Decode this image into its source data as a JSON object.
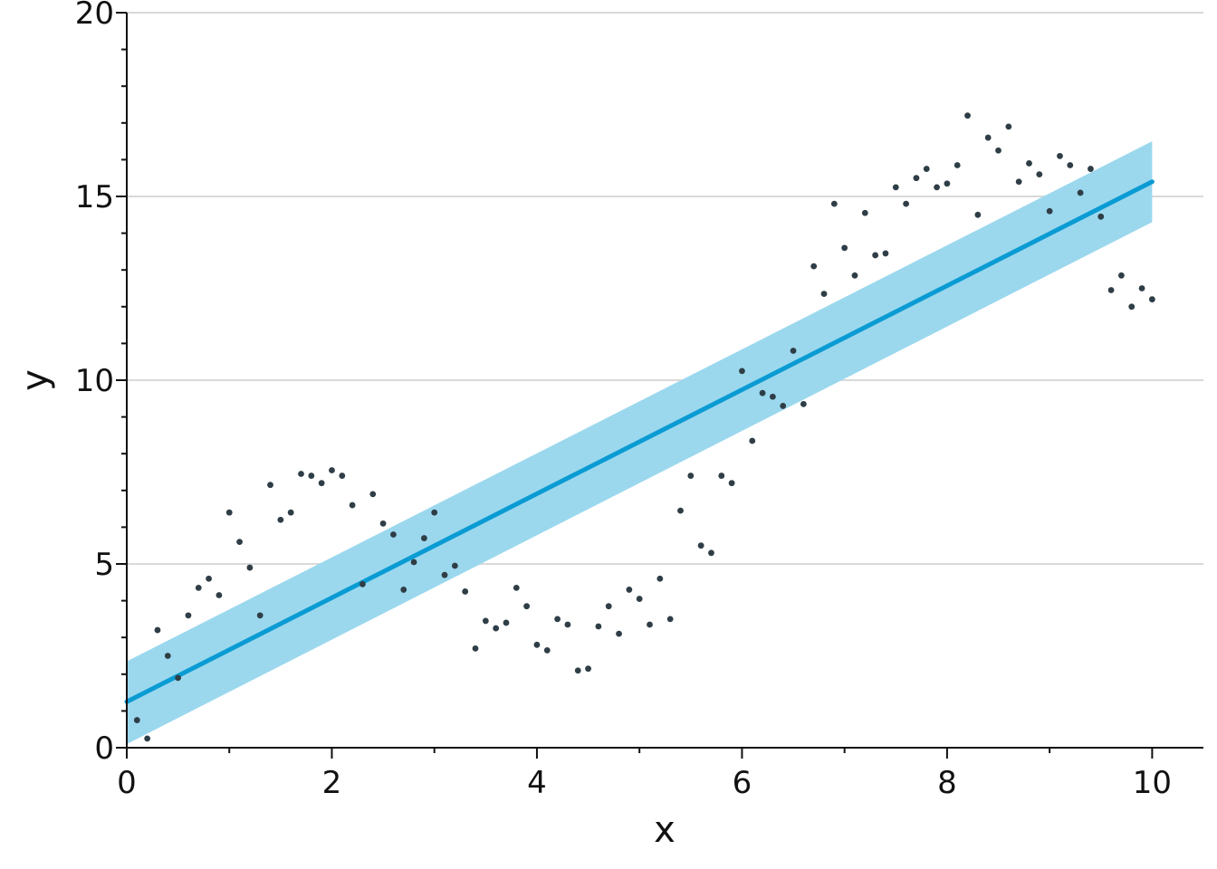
{
  "chart_data": {
    "type": "scatter",
    "xlabel": "x",
    "ylabel": "y",
    "xlim": [
      0,
      10.5
    ],
    "ylim": [
      0,
      20
    ],
    "xticks": [
      0,
      2,
      4,
      6,
      8,
      10
    ],
    "yticks": [
      0,
      5,
      10,
      15,
      20
    ],
    "grid": "horizontal",
    "colors": {
      "points": "#2f3e46",
      "line": "#0a9bd3",
      "band": "#9bd8ee",
      "grid": "#d9d9d9"
    },
    "regression": {
      "x": [
        0,
        10
      ],
      "y": [
        1.25,
        15.4
      ],
      "band_lower": [
        0.1,
        14.3
      ],
      "band_upper": [
        2.35,
        16.5
      ]
    },
    "points": [
      [
        0.1,
        0.75
      ],
      [
        0.2,
        0.25
      ],
      [
        0.3,
        3.2
      ],
      [
        0.4,
        2.5
      ],
      [
        0.5,
        1.9
      ],
      [
        0.6,
        3.6
      ],
      [
        0.7,
        4.35
      ],
      [
        0.8,
        4.6
      ],
      [
        0.9,
        4.15
      ],
      [
        1.0,
        6.4
      ],
      [
        1.1,
        5.6
      ],
      [
        1.2,
        4.9
      ],
      [
        1.3,
        3.6
      ],
      [
        1.4,
        7.15
      ],
      [
        1.5,
        6.2
      ],
      [
        1.6,
        6.4
      ],
      [
        1.7,
        7.45
      ],
      [
        1.8,
        7.4
      ],
      [
        1.9,
        7.2
      ],
      [
        2.0,
        7.55
      ],
      [
        2.1,
        7.4
      ],
      [
        2.2,
        6.6
      ],
      [
        2.3,
        4.45
      ],
      [
        2.4,
        6.9
      ],
      [
        2.5,
        6.1
      ],
      [
        2.6,
        5.8
      ],
      [
        2.7,
        4.3
      ],
      [
        2.8,
        5.05
      ],
      [
        2.9,
        5.7
      ],
      [
        3.0,
        6.4
      ],
      [
        3.1,
        4.7
      ],
      [
        3.2,
        4.95
      ],
      [
        3.3,
        4.25
      ],
      [
        3.4,
        2.7
      ],
      [
        3.5,
        3.45
      ],
      [
        3.6,
        3.25
      ],
      [
        3.7,
        3.4
      ],
      [
        3.8,
        4.35
      ],
      [
        3.9,
        3.85
      ],
      [
        4.0,
        2.8
      ],
      [
        4.1,
        2.65
      ],
      [
        4.2,
        3.5
      ],
      [
        4.3,
        3.35
      ],
      [
        4.4,
        2.1
      ],
      [
        4.5,
        2.15
      ],
      [
        4.6,
        3.3
      ],
      [
        4.7,
        3.85
      ],
      [
        4.8,
        3.1
      ],
      [
        4.9,
        4.3
      ],
      [
        5.0,
        4.05
      ],
      [
        5.1,
        3.35
      ],
      [
        5.2,
        4.6
      ],
      [
        5.3,
        3.5
      ],
      [
        5.4,
        6.45
      ],
      [
        5.5,
        7.4
      ],
      [
        5.6,
        5.5
      ],
      [
        5.7,
        5.3
      ],
      [
        5.8,
        7.4
      ],
      [
        5.9,
        7.2
      ],
      [
        6.0,
        10.25
      ],
      [
        6.1,
        8.35
      ],
      [
        6.2,
        9.65
      ],
      [
        6.3,
        9.55
      ],
      [
        6.4,
        9.3
      ],
      [
        6.5,
        10.8
      ],
      [
        6.6,
        9.35
      ],
      [
        6.7,
        13.1
      ],
      [
        6.8,
        12.35
      ],
      [
        6.9,
        14.8
      ],
      [
        7.0,
        13.6
      ],
      [
        7.1,
        12.85
      ],
      [
        7.2,
        14.55
      ],
      [
        7.3,
        13.4
      ],
      [
        7.4,
        13.45
      ],
      [
        7.5,
        15.25
      ],
      [
        7.6,
        14.8
      ],
      [
        7.7,
        15.5
      ],
      [
        7.8,
        15.75
      ],
      [
        7.9,
        15.25
      ],
      [
        8.0,
        15.35
      ],
      [
        8.1,
        15.85
      ],
      [
        8.2,
        17.2
      ],
      [
        8.3,
        14.5
      ],
      [
        8.4,
        16.6
      ],
      [
        8.5,
        16.25
      ],
      [
        8.6,
        16.9
      ],
      [
        8.7,
        15.4
      ],
      [
        8.8,
        15.9
      ],
      [
        8.9,
        15.6
      ],
      [
        9.0,
        14.6
      ],
      [
        9.1,
        16.1
      ],
      [
        9.2,
        15.85
      ],
      [
        9.3,
        15.1
      ],
      [
        9.4,
        15.75
      ],
      [
        9.5,
        14.45
      ],
      [
        9.6,
        12.45
      ],
      [
        9.7,
        12.85
      ],
      [
        9.8,
        12.0
      ],
      [
        9.9,
        12.5
      ],
      [
        10.0,
        12.2
      ]
    ]
  }
}
